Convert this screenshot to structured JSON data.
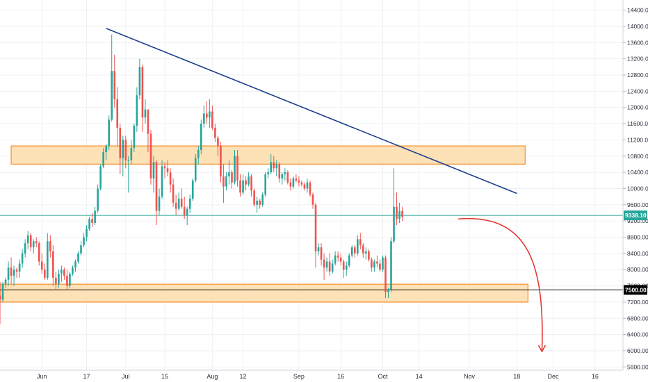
{
  "chart_data": {
    "type": "candlestick",
    "title": "",
    "y_axis": {
      "ticks": [
        5600,
        6000,
        6400,
        6800,
        7200,
        7600,
        8000,
        8400,
        8800,
        9200,
        9600,
        10000,
        10400,
        10800,
        11200,
        11600,
        12000,
        12400,
        12800,
        13200,
        13600,
        14000,
        14400
      ],
      "tick_labels": [
        "5600.00",
        "6000.00",
        "6400.00",
        "6800.00",
        "7200.00",
        "7600.00",
        "8000.00",
        "8400.00",
        "8800.00",
        "9200.00",
        "9600.00",
        "10000.00",
        "10400.00",
        "10800.00",
        "11200.00",
        "11600.00",
        "12000.00",
        "12400.00",
        "12800.00",
        "13200.00",
        "13600.00",
        "14000.00",
        "14400.00"
      ],
      "range": [
        5520,
        14650
      ],
      "position": "right"
    },
    "x_axis": {
      "ticks": [
        "2019-06-01",
        "2019-06-17",
        "2019-07-01",
        "2019-07-15",
        "2019-08-01",
        "2019-08-12",
        "2019-09-01",
        "2019-09-16",
        "2019-10-01",
        "2019-10-14",
        "2019-11-01",
        "2019-11-18",
        "2019-12-01",
        "2019-12-16"
      ],
      "tick_labels": [
        "Jun",
        "17",
        "Jul",
        "15",
        "Aug",
        "12",
        "Sep",
        "16",
        "Oct",
        "14",
        "Nov",
        "18",
        "Dec",
        "16"
      ],
      "range": [
        "2019-05-17",
        "2019-12-26"
      ]
    },
    "grid": true,
    "candles": {
      "start_date": "2019-05-17",
      "ohlc": [
        [
          7360,
          7700,
          6650,
          7260
        ],
        [
          7260,
          7700,
          7200,
          7650
        ],
        [
          7650,
          7800,
          7550,
          7750
        ],
        [
          7750,
          8200,
          7600,
          8050
        ],
        [
          8050,
          8300,
          7650,
          7850
        ],
        [
          7850,
          8100,
          7600,
          8000
        ],
        [
          8000,
          8050,
          7800,
          7950
        ],
        [
          7950,
          8250,
          7800,
          8150
        ],
        [
          8150,
          8500,
          8050,
          8400
        ],
        [
          8400,
          8750,
          8300,
          8650
        ],
        [
          8650,
          8950,
          8500,
          8850
        ],
        [
          8850,
          8900,
          8450,
          8550
        ],
        [
          8550,
          8750,
          8400,
          8700
        ],
        [
          8700,
          8800,
          8550,
          8650
        ],
        [
          8650,
          8700,
          8100,
          8200
        ],
        [
          8200,
          8400,
          7900,
          8000
        ],
        [
          8000,
          8150,
          7750,
          7800
        ],
        [
          7800,
          8900,
          7750,
          8700
        ],
        [
          8700,
          8850,
          8300,
          8450
        ],
        [
          8450,
          8600,
          7600,
          7800
        ],
        [
          7800,
          7950,
          7500,
          7650
        ],
        [
          7650,
          8000,
          7550,
          7900
        ],
        [
          7900,
          8100,
          7700,
          8000
        ],
        [
          8000,
          8050,
          7750,
          7850
        ],
        [
          7850,
          8000,
          7500,
          7600
        ],
        [
          7600,
          7950,
          7550,
          7900
        ],
        [
          7900,
          8100,
          7850,
          8050
        ],
        [
          8050,
          8250,
          7950,
          8200
        ],
        [
          8200,
          8450,
          8150,
          8400
        ],
        [
          8400,
          8700,
          8350,
          8600
        ],
        [
          8600,
          8900,
          8550,
          8800
        ],
        [
          8800,
          9100,
          8700,
          9000
        ],
        [
          9000,
          9300,
          8950,
          9250
        ],
        [
          9250,
          9400,
          9050,
          9150
        ],
        [
          9150,
          9550,
          9100,
          9450
        ],
        [
          9450,
          10100,
          9400,
          10000
        ],
        [
          10000,
          10600,
          9950,
          10550
        ],
        [
          10550,
          11000,
          10500,
          10900
        ],
        [
          10900,
          11100,
          10700,
          11050
        ],
        [
          11050,
          11800,
          10950,
          11700
        ],
        [
          11700,
          13800,
          11650,
          12900
        ],
        [
          12900,
          13300,
          12000,
          12200
        ],
        [
          12200,
          12500,
          11050,
          11500
        ],
        [
          11500,
          11600,
          10350,
          10750
        ],
        [
          10750,
          11300,
          10300,
          11200
        ],
        [
          11200,
          11300,
          10500,
          10700
        ],
        [
          10700,
          10800,
          9900,
          10700
        ],
        [
          10700,
          11200,
          10600,
          11000
        ],
        [
          11000,
          11600,
          10900,
          11550
        ],
        [
          11550,
          12500,
          11400,
          12300
        ],
        [
          12300,
          13200,
          12200,
          13000
        ],
        [
          13000,
          13050,
          11400,
          11750
        ],
        [
          11750,
          12200,
          11600,
          11950
        ],
        [
          11950,
          11950,
          10900,
          11350
        ],
        [
          11350,
          11450,
          10100,
          10250
        ],
        [
          10250,
          10800,
          9900,
          10650
        ],
        [
          10650,
          10700,
          9100,
          9450
        ],
        [
          9450,
          10000,
          9350,
          9800
        ],
        [
          9800,
          10700,
          9750,
          10550
        ],
        [
          10550,
          10650,
          10250,
          10500
        ],
        [
          10500,
          10700,
          10300,
          10400
        ],
        [
          10400,
          10500,
          9900,
          10100
        ],
        [
          10100,
          10250,
          9550,
          9650
        ],
        [
          9650,
          9850,
          9350,
          9500
        ],
        [
          9500,
          9900,
          9450,
          9750
        ],
        [
          9750,
          10000,
          9500,
          9550
        ],
        [
          9550,
          9800,
          9250,
          9350
        ],
        [
          9350,
          9550,
          9100,
          9500
        ],
        [
          9500,
          9850,
          9400,
          9750
        ],
        [
          9750,
          10250,
          9700,
          10200
        ],
        [
          10200,
          10850,
          10150,
          10750
        ],
        [
          10750,
          11050,
          10600,
          10950
        ],
        [
          10950,
          11700,
          10850,
          11600
        ],
        [
          11600,
          12050,
          11500,
          11850
        ],
        [
          11850,
          12150,
          11600,
          11750
        ],
        [
          11750,
          12200,
          11500,
          11900
        ],
        [
          11900,
          12050,
          11450,
          11500
        ],
        [
          11500,
          11600,
          11150,
          11250
        ],
        [
          11250,
          11300,
          10800,
          11050
        ],
        [
          11050,
          11150,
          10150,
          10300
        ],
        [
          10300,
          10600,
          9650,
          10050
        ],
        [
          10050,
          10400,
          9950,
          10300
        ],
        [
          10300,
          10700,
          10100,
          10400
        ],
        [
          10400,
          10450,
          10000,
          10150
        ],
        [
          10150,
          10950,
          10100,
          10800
        ],
        [
          10800,
          10950,
          10050,
          10200
        ],
        [
          10200,
          10350,
          9800,
          9900
        ],
        [
          9900,
          10350,
          9850,
          10200
        ],
        [
          10200,
          10300,
          9950,
          10100
        ],
        [
          10100,
          10400,
          10050,
          10300
        ],
        [
          10300,
          10350,
          9800,
          9950
        ],
        [
          9950,
          10000,
          9550,
          9600
        ],
        [
          9600,
          9800,
          9400,
          9700
        ],
        [
          9700,
          9750,
          9500,
          9600
        ],
        [
          9600,
          9900,
          9550,
          9850
        ],
        [
          9850,
          10400,
          9800,
          10350
        ],
        [
          10350,
          10500,
          10250,
          10400
        ],
        [
          10400,
          10850,
          10350,
          10650
        ],
        [
          10650,
          10800,
          10400,
          10500
        ],
        [
          10500,
          10700,
          10300,
          10600
        ],
        [
          10600,
          10650,
          10150,
          10250
        ],
        [
          10250,
          10400,
          10100,
          10350
        ],
        [
          10350,
          10500,
          10200,
          10400
        ],
        [
          10400,
          10450,
          10100,
          10150
        ],
        [
          10150,
          10250,
          9950,
          10050
        ],
        [
          10050,
          10300,
          10000,
          10250
        ],
        [
          10250,
          10350,
          10150,
          10200
        ],
        [
          10200,
          10300,
          10050,
          10150
        ],
        [
          10150,
          10200,
          10050,
          10100
        ],
        [
          10100,
          10150,
          9950,
          10000
        ],
        [
          10000,
          10250,
          9900,
          10150
        ],
        [
          10150,
          10200,
          9800,
          9850
        ],
        [
          9850,
          9900,
          9500,
          9600
        ],
        [
          9600,
          9650,
          8050,
          8450
        ],
        [
          8450,
          8650,
          8350,
          8550
        ],
        [
          8550,
          8650,
          8100,
          8250
        ],
        [
          8250,
          8400,
          7750,
          8050
        ],
        [
          8050,
          8300,
          7950,
          8200
        ],
        [
          8200,
          8400,
          7850,
          7950
        ],
        [
          7950,
          8250,
          7900,
          8150
        ],
        [
          8150,
          8450,
          8100,
          8350
        ],
        [
          8350,
          8450,
          8200,
          8300
        ],
        [
          8300,
          8400,
          8100,
          8200
        ],
        [
          8200,
          8250,
          7800,
          8000
        ],
        [
          8000,
          8200,
          7850,
          8100
        ],
        [
          8100,
          8400,
          8050,
          8350
        ],
        [
          8350,
          8600,
          8300,
          8550
        ],
        [
          8550,
          8600,
          8300,
          8400
        ],
        [
          8400,
          8850,
          8350,
          8750
        ],
        [
          8750,
          8900,
          8500,
          8600
        ],
        [
          8600,
          8650,
          8300,
          8400
        ],
        [
          8400,
          8550,
          8250,
          8450
        ],
        [
          8450,
          8500,
          8200,
          8250
        ],
        [
          8250,
          8300,
          7950,
          8050
        ],
        [
          8050,
          8250,
          7950,
          8200
        ],
        [
          8200,
          8350,
          8050,
          8150
        ],
        [
          8150,
          8250,
          7950,
          8000
        ],
        [
          8000,
          8350,
          7950,
          8300
        ],
        [
          8300,
          8350,
          7300,
          7450
        ],
        [
          7450,
          7550,
          7300,
          7500
        ],
        [
          7500,
          8800,
          7450,
          8700
        ],
        [
          8700,
          10500,
          8650,
          9550
        ],
        [
          9550,
          9900,
          9100,
          9250
        ],
        [
          9250,
          9650,
          9150,
          9450
        ],
        [
          9450,
          9550,
          9200,
          9300
        ]
      ]
    },
    "annotations": {
      "trendline": [
        {
          "date": "2019-06-24",
          "price": 13950
        },
        {
          "date": "2019-11-18",
          "price": 9880
        }
      ],
      "resistance_zone": {
        "from": "2019-05-21",
        "to": "2019-11-21",
        "low": 10600,
        "high": 11050
      },
      "support_zone": {
        "from": "2019-05-17",
        "to": "2019-11-22",
        "low": 7200,
        "high": 7640
      },
      "horizontal_lines": [
        {
          "price": 7500,
          "color": "#000000"
        },
        {
          "price": 9338.1,
          "color": "#26a69a"
        }
      ],
      "projection_arrow": {
        "from": {
          "date": "2019-10-28",
          "price": 9250
        },
        "to": {
          "date": "2019-11-27",
          "price": 5980
        }
      }
    },
    "price_labels": [
      {
        "text": "9338.10",
        "price": 9338.1,
        "color": "#26a69a"
      },
      {
        "text": "7500.00",
        "price": 7500,
        "color": "#000000"
      }
    ],
    "colors": {
      "up": "#26a69a",
      "down": "#ef5350",
      "trendline": "#1e3f8f",
      "zone_fill": "#fddcaa",
      "zone_stroke": "#f6a04d",
      "arrow": "#e53935"
    }
  }
}
